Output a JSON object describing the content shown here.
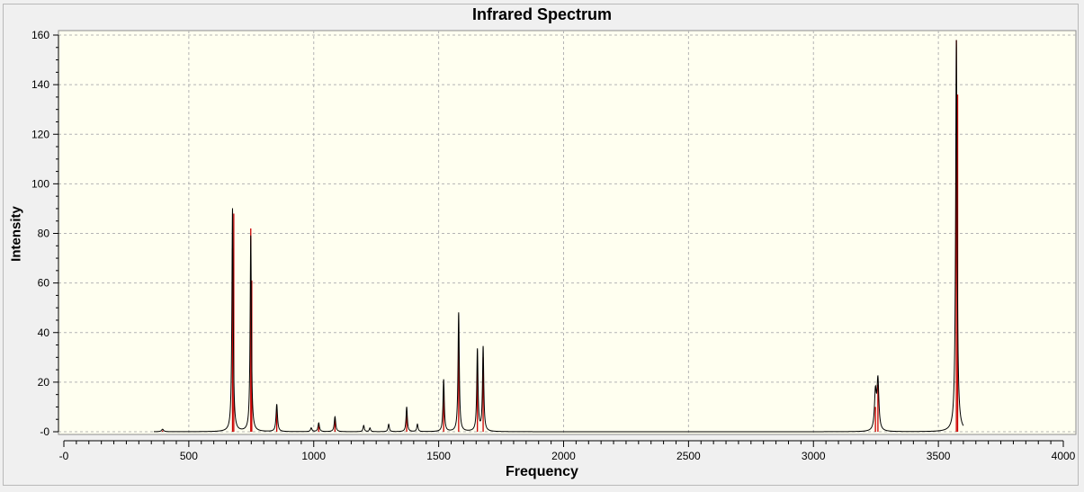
{
  "chart_data": {
    "type": "line",
    "title": "Infrared Spectrum",
    "xlabel": "Frequency",
    "ylabel": "Intensity",
    "xlim": [
      0,
      4000
    ],
    "ylim": [
      0,
      160
    ],
    "x_ticks": [
      0,
      500,
      1000,
      1500,
      2000,
      2500,
      3000,
      3500,
      4000
    ],
    "x_tick_labels": [
      "-0",
      "500",
      "1000",
      "1500",
      "2000",
      "2500",
      "3000",
      "3500",
      "4000"
    ],
    "y_ticks": [
      0,
      20,
      40,
      60,
      80,
      100,
      120,
      140,
      160
    ],
    "y_tick_labels": [
      "-0",
      "20",
      "40",
      "60",
      "80",
      "100",
      "120",
      "140",
      "160"
    ],
    "grid": true,
    "series": [
      {
        "kind": "spectrum",
        "color": "#000000",
        "x_range": [
          360,
          3600
        ],
        "peaks": [
          {
            "x": 395,
            "y": 1,
            "w": 10
          },
          {
            "x": 675,
            "y": 90,
            "w": 6
          },
          {
            "x": 748,
            "y": 79,
            "w": 6
          },
          {
            "x": 852,
            "y": 11,
            "w": 7
          },
          {
            "x": 990,
            "y": 1.5,
            "w": 7
          },
          {
            "x": 1020,
            "y": 3.5,
            "w": 7
          },
          {
            "x": 1085,
            "y": 6,
            "w": 7
          },
          {
            "x": 1200,
            "y": 2.5,
            "w": 6
          },
          {
            "x": 1225,
            "y": 1.5,
            "w": 6
          },
          {
            "x": 1300,
            "y": 3,
            "w": 6
          },
          {
            "x": 1372,
            "y": 10,
            "w": 6
          },
          {
            "x": 1415,
            "y": 3,
            "w": 6
          },
          {
            "x": 1520,
            "y": 21,
            "w": 6
          },
          {
            "x": 1580,
            "y": 48,
            "w": 6
          },
          {
            "x": 1655,
            "y": 33,
            "w": 6
          },
          {
            "x": 1678,
            "y": 34,
            "w": 6
          },
          {
            "x": 3248,
            "y": 15,
            "w": 9
          },
          {
            "x": 3258,
            "y": 20,
            "w": 9
          },
          {
            "x": 3572,
            "y": 158,
            "w": 7
          }
        ]
      },
      {
        "kind": "sticks",
        "color": "#cc0000",
        "values": [
          [
            395,
            0.5
          ],
          [
            675,
            74
          ],
          [
            680,
            88
          ],
          [
            748,
            82
          ],
          [
            752,
            61
          ],
          [
            852,
            10
          ],
          [
            1020,
            2.5
          ],
          [
            1085,
            5
          ],
          [
            1372,
            8
          ],
          [
            1520,
            18
          ],
          [
            1580,
            42
          ],
          [
            1655,
            29
          ],
          [
            1678,
            30
          ],
          [
            3248,
            10
          ],
          [
            3258,
            19
          ],
          [
            3572,
            158
          ],
          [
            3577,
            136
          ]
        ]
      }
    ]
  }
}
